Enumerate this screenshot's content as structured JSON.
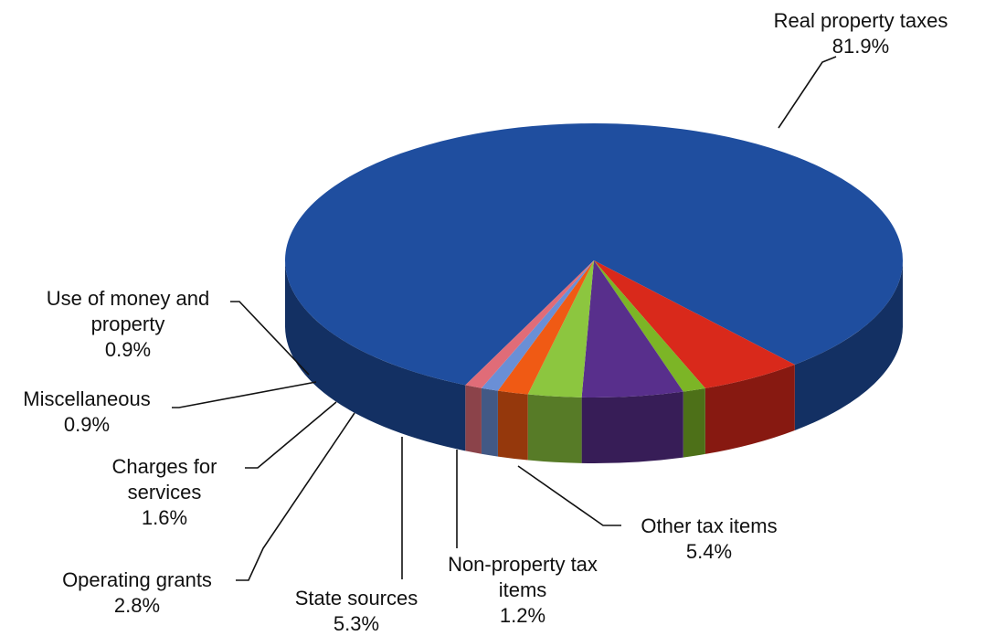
{
  "chart_data": {
    "type": "pie",
    "style": "3d",
    "title": "",
    "unit": "%",
    "slices": [
      {
        "name": "Real property taxes",
        "value": 81.9,
        "label": "81.9%",
        "color": "#1f4e9f",
        "label_lines": [
          "Real property taxes"
        ]
      },
      {
        "name": "Other tax items",
        "value": 5.4,
        "label": "5.4%",
        "color": "#d9291b",
        "label_lines": [
          "Other tax items"
        ]
      },
      {
        "name": "Non-property tax items",
        "value": 1.2,
        "label": "1.2%",
        "color": "#7cb526",
        "label_lines": [
          "Non-property  tax",
          "items"
        ]
      },
      {
        "name": "State sources",
        "value": 5.3,
        "label": "5.3%",
        "color": "#582f8c",
        "label_lines": [
          "State sources"
        ]
      },
      {
        "name": "Operating grants",
        "value": 2.8,
        "label": "2.8%",
        "color": "#8cc63f",
        "label_lines": [
          "Operating grants"
        ]
      },
      {
        "name": "Charges for services",
        "value": 1.6,
        "label": "1.6%",
        "color": "#f05a14",
        "label_lines": [
          "Charges  for",
          "services"
        ]
      },
      {
        "name": "Miscellaneous",
        "value": 0.9,
        "label": "0.9%",
        "color": "#6a8fd6",
        "label_lines": [
          "Miscellaneous"
        ]
      },
      {
        "name": "Use of money and property",
        "value": 0.9,
        "label": "0.9%",
        "color": "#e06c78",
        "label_lines": [
          "Use of money  and",
          "property"
        ]
      }
    ]
  }
}
